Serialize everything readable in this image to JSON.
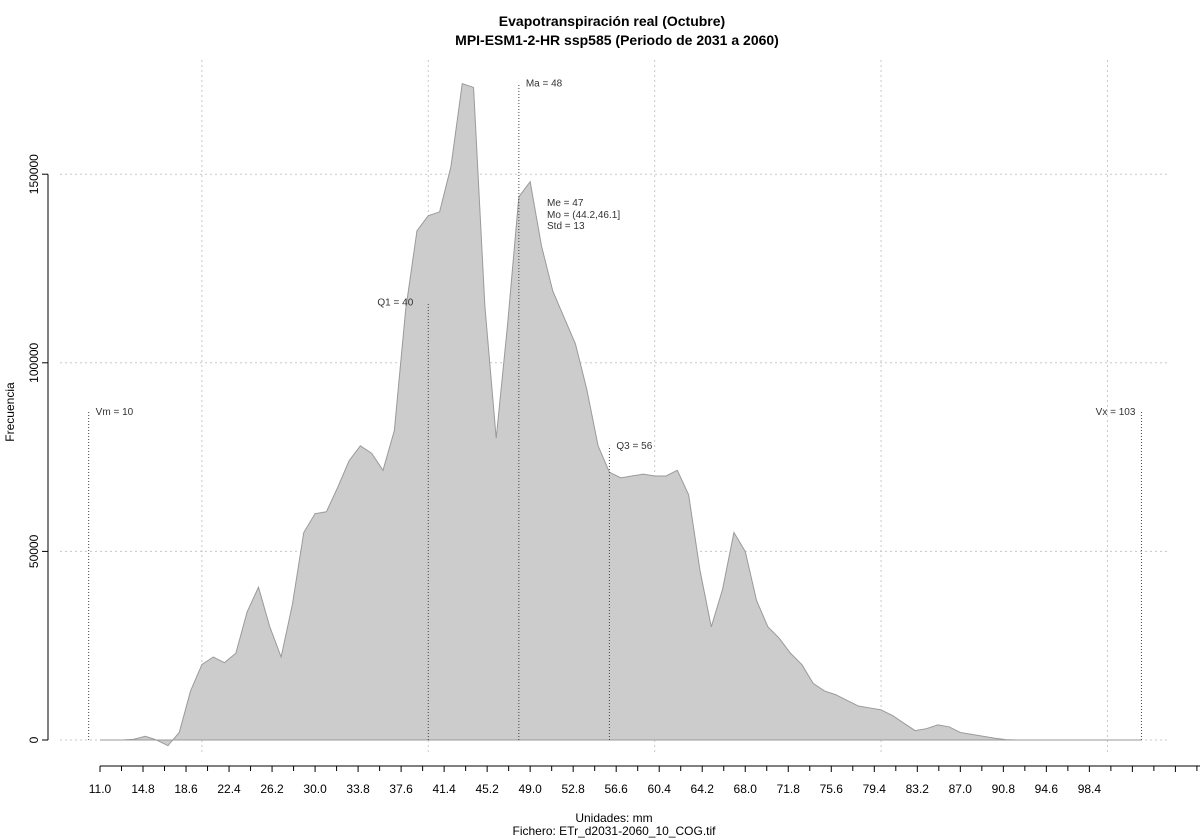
{
  "chart_data": {
    "type": "area",
    "title": "Evapotranspiración real (Octubre)",
    "subtitle": "MPI-ESM1-2-HR ssp585 (Periodo de 2031 a 2060)",
    "xlabel": "Unidades: mm",
    "ylabel": "Frecuencia",
    "footer": "Fichero: ETr_d2031-2060_10_COG.tif",
    "xlim": [
      10,
      103
    ],
    "ylim": [
      0,
      175000
    ],
    "grid": true,
    "x_ticks": [
      "11.0",
      "14.8",
      "18.6",
      "22.4",
      "26.2",
      "30.0",
      "33.8",
      "37.6",
      "41.4",
      "45.2",
      "49.0",
      "52.8",
      "56.6",
      "60.4",
      "64.2",
      "68.0",
      "71.8",
      "75.6",
      "79.4",
      "83.2",
      "87.0",
      "90.8",
      "94.6",
      "98.4"
    ],
    "y_ticks": [
      "0",
      "50000",
      "100000",
      "150000"
    ],
    "x": [
      11,
      12,
      13,
      14,
      15,
      16,
      17,
      18,
      19,
      20,
      21,
      22,
      23,
      24,
      25,
      26,
      27,
      28,
      29,
      30,
      31,
      32,
      33,
      34,
      35,
      36,
      37,
      38,
      39,
      40,
      41,
      42,
      43,
      44,
      45,
      46,
      47,
      48,
      49,
      50,
      51,
      52,
      53,
      54,
      55,
      56,
      57,
      58,
      59,
      60,
      61,
      62,
      63,
      64,
      65,
      66,
      67,
      68,
      69,
      70,
      71,
      72,
      73,
      74,
      75,
      76,
      77,
      78,
      79,
      80,
      81,
      82,
      83,
      84,
      85,
      86,
      87,
      88,
      89,
      90,
      91,
      92,
      93,
      94,
      95,
      96,
      97,
      98,
      99,
      100,
      101,
      102,
      103
    ],
    "y": [
      0,
      0,
      0,
      200,
      1000,
      0,
      -1500,
      2000,
      13000,
      20000,
      22000,
      20500,
      23000,
      34000,
      40500,
      30000,
      22000,
      36000,
      55000,
      60000,
      60500,
      67000,
      74000,
      78000,
      76000,
      71500,
      82000,
      114000,
      135000,
      139000,
      140000,
      152000,
      174000,
      173000,
      115000,
      80000,
      110000,
      144000,
      148000,
      131000,
      119000,
      112000,
      105000,
      93000,
      78000,
      71000,
      69500,
      70000,
      70500,
      70000,
      70000,
      71500,
      65000,
      45000,
      30000,
      40000,
      55000,
      50000,
      37000,
      30000,
      27000,
      23000,
      20000,
      15000,
      13000,
      12000,
      10500,
      9000,
      8500,
      8000,
      6500,
      4500,
      2500,
      3000,
      4000,
      3500,
      2000,
      1500,
      1000,
      500,
      100,
      0,
      0,
      0,
      0,
      0,
      0,
      0,
      0,
      0,
      0,
      0,
      0
    ],
    "markers": [
      {
        "label": "Vm = 10",
        "value": 10,
        "height": 87000
      },
      {
        "label": "Q1 = 40",
        "value": 40,
        "height": 116000
      },
      {
        "label": "Ma = 48",
        "value": 48,
        "height": 174000
      },
      {
        "label": "Q3 = 56",
        "value": 56,
        "height": 78000
      },
      {
        "label": "Vx = 103",
        "value": 103,
        "height": 87000
      }
    ],
    "stats": [
      "Me = 47",
      "Mo = (44.2,46.1]",
      "Std = 13"
    ]
  }
}
